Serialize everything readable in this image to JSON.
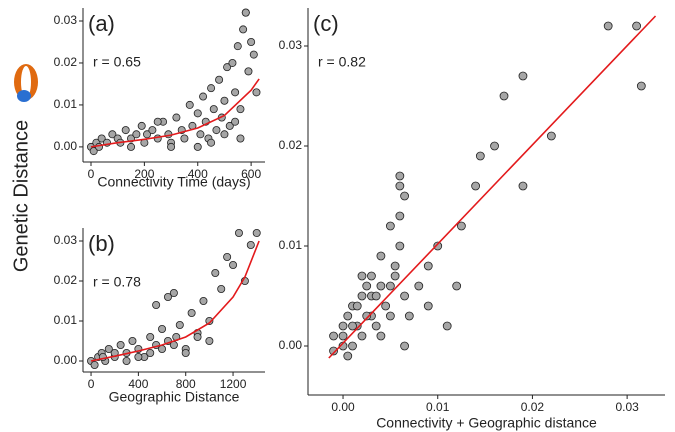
{
  "ylabel": "Genetic Distance",
  "chart_data": [
    {
      "type": "scatter",
      "panel_label": "(a)",
      "annotation": "r = 0.65",
      "xlabel": "Connectivity Time (days)",
      "xlim": [
        -30,
        652
      ],
      "ylim": [
        -0.0036,
        0.0331
      ],
      "xticks": [
        0,
        200,
        400,
        600
      ],
      "yticks": [
        {
          "value": 0,
          "label": "0.00"
        },
        {
          "value": 0.01,
          "label": "0.01"
        },
        {
          "value": 0.02,
          "label": "0.02"
        },
        {
          "value": 0.03,
          "label": "0.03"
        }
      ],
      "series": [
        {
          "color": "#a6a6a6",
          "x": [
            0,
            10,
            20,
            30,
            40,
            60,
            80,
            100,
            110,
            130,
            150,
            170,
            190,
            200,
            210,
            230,
            250,
            270,
            290,
            300,
            320,
            340,
            350,
            370,
            380,
            400,
            410,
            420,
            430,
            440,
            450,
            460,
            470,
            480,
            490,
            500,
            510,
            520,
            530,
            540,
            550,
            560,
            570,
            580,
            590,
            600,
            610,
            620,
            400,
            450,
            500,
            540,
            560,
            580,
            300,
            250,
            150
          ],
          "values": [
            0,
            -0.001,
            0.001,
            0,
            0.002,
            0.001,
            0.003,
            0.002,
            0.001,
            0.004,
            0.002,
            0.003,
            0.005,
            0.001,
            0.003,
            0.004,
            0.002,
            0.006,
            0.003,
            0.001,
            0.007,
            0.004,
            0.002,
            0.01,
            0.005,
            0.008,
            0.003,
            0.012,
            0.006,
            0.002,
            0.014,
            0.009,
            0.004,
            0.016,
            0.007,
            0.011,
            0.019,
            0.005,
            0.02,
            0.013,
            0.024,
            0.009,
            0.028,
            0.032,
            0.018,
            0.025,
            0.022,
            0.013,
            0,
            0.001,
            0.003,
            0.006,
            0.002,
            0.032,
            0,
            0.006,
            0
          ]
        },
        {
          "color": "#e31a1c",
          "kind": "line",
          "x": [
            0,
            100,
            200,
            300,
            400,
            500,
            600,
            630
          ],
          "values": [
            0,
            0.001,
            0.0018,
            0.0028,
            0.0045,
            0.0075,
            0.0135,
            0.0162
          ]
        }
      ]
    },
    {
      "type": "scatter",
      "panel_label": "(b)",
      "annotation": "r = 0.78",
      "xlabel": "Geographic Distance",
      "xlim": [
        -68,
        1470
      ],
      "ylim": [
        -0.00275,
        0.03325
      ],
      "xticks": [
        0,
        400,
        800,
        1200
      ],
      "yticks": [
        {
          "value": 0,
          "label": "0.00"
        },
        {
          "value": 0.01,
          "label": "0.01"
        },
        {
          "value": 0.02,
          "label": "0.02"
        },
        {
          "value": 0.03,
          "label": "0.03"
        }
      ],
      "series": [
        {
          "color": "#a6a6a6",
          "x": [
            0,
            30,
            60,
            90,
            120,
            150,
            200,
            250,
            300,
            350,
            400,
            450,
            500,
            550,
            600,
            650,
            700,
            750,
            800,
            850,
            900,
            950,
            1000,
            1050,
            1100,
            1150,
            1200,
            1250,
            1300,
            1350,
            1400,
            100,
            200,
            300,
            400,
            500,
            600,
            700,
            800,
            900,
            1000,
            550,
            650,
            720
          ],
          "values": [
            0,
            -0.001,
            0.001,
            0.002,
            0,
            0.003,
            0.001,
            0.004,
            0.002,
            0.005,
            0.003,
            0.001,
            0.006,
            0.004,
            0.008,
            0.005,
            0.017,
            0.009,
            0.003,
            0.012,
            0.007,
            0.015,
            0.01,
            0.022,
            0.018,
            0.026,
            0.024,
            0.032,
            0.02,
            0.029,
            0.032,
            0.001,
            0.002,
            0,
            0.001,
            0.002,
            0.003,
            0.004,
            0.002,
            0.006,
            0.005,
            0.014,
            0.016,
            0.006
          ]
        },
        {
          "color": "#e31a1c",
          "kind": "line",
          "x": [
            0,
            200,
            400,
            600,
            800,
            1000,
            1200,
            1300,
            1420
          ],
          "values": [
            0,
            0.0012,
            0.0025,
            0.004,
            0.006,
            0.0095,
            0.016,
            0.021,
            0.03
          ]
        }
      ]
    },
    {
      "type": "scatter",
      "panel_label": "(c)",
      "annotation": "r = 0.82",
      "xlabel": "Connectivity + Geographic distance",
      "xlim": [
        -0.0037,
        0.034
      ],
      "ylim": [
        -0.0049,
        0.0338
      ],
      "xticks": [
        {
          "value": 0,
          "label": "0.00"
        },
        {
          "value": 0.01,
          "label": "0.01"
        },
        {
          "value": 0.02,
          "label": "0.02"
        },
        {
          "value": 0.03,
          "label": "0.03"
        }
      ],
      "yticks": [
        {
          "value": 0,
          "label": "0.00"
        },
        {
          "value": 0.01,
          "label": "0.01"
        },
        {
          "value": 0.02,
          "label": "0.02"
        },
        {
          "value": 0.03,
          "label": "0.03"
        }
      ],
      "series": [
        {
          "color": "#a6a6a6",
          "x": [
            -0.001,
            -0.001,
            0,
            0,
            0,
            0.0005,
            0.001,
            0.001,
            0.0015,
            0.002,
            0.002,
            0.0025,
            0.003,
            0.003,
            0.0035,
            0.004,
            0.004,
            0.0045,
            0.005,
            0.005,
            0.0055,
            0.006,
            0.006,
            0.006,
            0.0065,
            0.0065,
            0.007,
            0.008,
            0.009,
            0.009,
            0.01,
            0.011,
            0.012,
            0.0125,
            0.014,
            0.0145,
            0.016,
            0.017,
            0.019,
            0.019,
            0.022,
            0.028,
            0.031,
            0.0315,
            0.0005,
            0.001,
            0.002,
            0.003,
            0.004,
            0.005,
            0.006,
            0.0065,
            0.0015,
            0.0025,
            0.0035,
            0.0055
          ],
          "values": [
            -0.0005,
            0.001,
            0,
            0.002,
            0.001,
            0.003,
            0,
            0.004,
            0.002,
            0.005,
            0.001,
            0.006,
            0.003,
            0.007,
            0.002,
            0.006,
            0.009,
            0.004,
            0.012,
            0.003,
            0.007,
            0.017,
            0.016,
            0.01,
            0.015,
            0.005,
            0.003,
            0.006,
            0.004,
            0.008,
            0.01,
            0.002,
            0.006,
            0.012,
            0.016,
            0.019,
            0.02,
            0.025,
            0.016,
            0.027,
            0.021,
            0.032,
            0.032,
            0.026,
            -0.001,
            0.002,
            0.007,
            0.005,
            0.001,
            0.006,
            0.013,
            0,
            0.004,
            0.003,
            0.005,
            0.008
          ]
        },
        {
          "color": "#e31a1c",
          "kind": "line",
          "x": [
            -0.0015,
            0.033
          ],
          "values": [
            -0.0012,
            0.033
          ]
        }
      ]
    }
  ]
}
